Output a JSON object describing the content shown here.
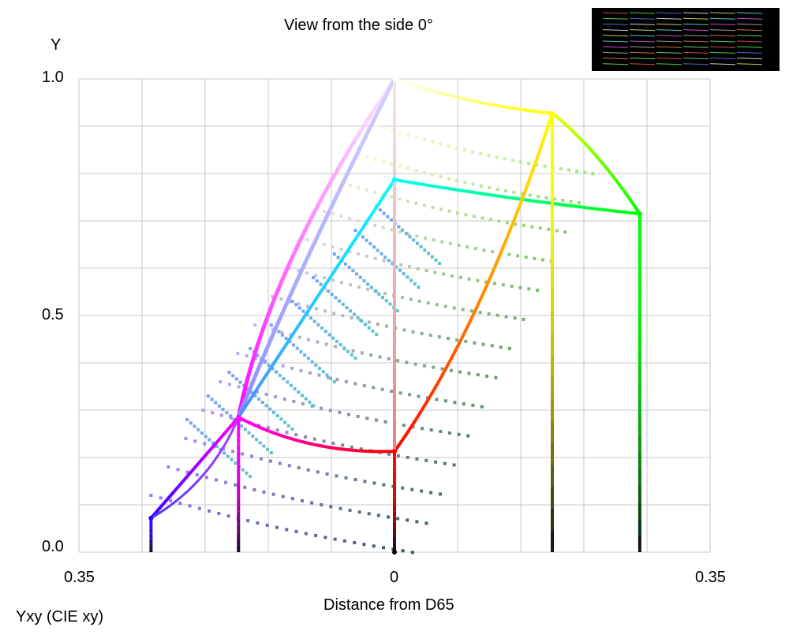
{
  "title": "View from the side 0°",
  "model_label": "Yxy (CIE xy)",
  "thumbnail_icon": "rgb-stripes-thumbnail",
  "chart_data": {
    "type": "scatter",
    "title": "View from the side 0°",
    "xlabel": "Distance from D65",
    "ylabel": "Y",
    "xlim": [
      -0.35,
      0.35
    ],
    "ylim": [
      0,
      1
    ],
    "x_tick_labels": [
      "0.35",
      "0",
      "0.35"
    ],
    "y_tick_labels": [
      "1.0",
      "0.5",
      "0.0"
    ],
    "grid": true,
    "series": [
      {
        "color": "#ffffff",
        "points": [
          [
            0.0,
            1.0
          ]
        ]
      },
      {
        "color": "#ffff00",
        "points": [
          [
            0.175,
            0.927
          ]
        ]
      },
      {
        "color": "#00ff00",
        "points": [
          [
            0.272,
            0.715
          ]
        ]
      },
      {
        "color": "#00ffff",
        "points": [
          [
            0.0,
            0.787
          ]
        ]
      },
      {
        "color": "#ff00ff",
        "points": [
          [
            -0.173,
            0.285
          ]
        ]
      },
      {
        "color": "#ff0000",
        "points": [
          [
            0.0,
            0.213
          ]
        ]
      },
      {
        "color": "#3300ff",
        "points": [
          [
            -0.27,
            0.072
          ]
        ]
      },
      {
        "color": "#000000",
        "points": [
          [
            0.0,
            0.0
          ]
        ]
      }
    ]
  }
}
